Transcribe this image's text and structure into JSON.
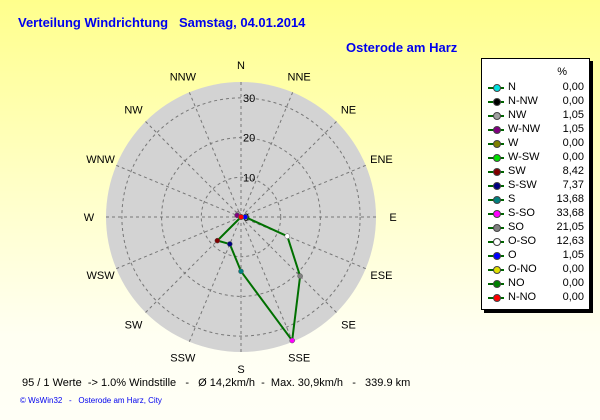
{
  "header": {
    "title": "Verteilung Windrichtung   Samstag, 04.01.2014",
    "location": "Osterode am Harz"
  },
  "chart_data": {
    "type": "radar",
    "title": "Verteilung Windrichtung   Samstag, 04.01.2014",
    "unit_label": "%",
    "radial_ticks": [
      "0",
      "10",
      "20",
      "30"
    ],
    "radial_range": [
      0,
      34
    ],
    "grid": true,
    "legend_placement": "right",
    "direction_labels": [
      "N",
      "NNE",
      "NE",
      "ENE",
      "E",
      "ESE",
      "SE",
      "SSE",
      "S",
      "SSW",
      "SW",
      "WSW",
      "W",
      "WNW",
      "NW",
      "NNW"
    ],
    "line_color": "#007000",
    "disc_color": "#d3d3d3",
    "series": [
      {
        "name": "N",
        "angle_deg": 0,
        "value": 0.0,
        "value_label": "0,00",
        "color": "#00e0e0"
      },
      {
        "name": "N-NW",
        "angle_deg": 337.5,
        "value": 0.0,
        "value_label": "0,00",
        "color": "#000000"
      },
      {
        "name": "NW",
        "angle_deg": 315,
        "value": 1.05,
        "value_label": "1,05",
        "color": "#a0a0a0"
      },
      {
        "name": "W-NW",
        "angle_deg": 292.5,
        "value": 1.05,
        "value_label": "1,05",
        "color": "#800080"
      },
      {
        "name": "W",
        "angle_deg": 270,
        "value": 0.0,
        "value_label": "0,00",
        "color": "#808000"
      },
      {
        "name": "W-SW",
        "angle_deg": 247.5,
        "value": 0.0,
        "value_label": "0,00",
        "color": "#00e000"
      },
      {
        "name": "SW",
        "angle_deg": 225,
        "value": 8.42,
        "value_label": "8,42",
        "color": "#800000"
      },
      {
        "name": "S-SW",
        "angle_deg": 202.5,
        "value": 7.37,
        "value_label": "7,37",
        "color": "#000080"
      },
      {
        "name": "S",
        "angle_deg": 180,
        "value": 13.68,
        "value_label": "13,68",
        "color": "#008080"
      },
      {
        "name": "S-SO",
        "angle_deg": 157.5,
        "value": 33.68,
        "value_label": "33,68",
        "color": "#ff00ff"
      },
      {
        "name": "SO",
        "angle_deg": 135,
        "value": 21.05,
        "value_label": "21,05",
        "color": "#808080"
      },
      {
        "name": "O-SO",
        "angle_deg": 112.5,
        "value": 12.63,
        "value_label": "12,63",
        "color": "#ffffff"
      },
      {
        "name": "O",
        "angle_deg": 90,
        "value": 1.05,
        "value_label": "1,05",
        "color": "#0000ff"
      },
      {
        "name": "O-NO",
        "angle_deg": 67.5,
        "value": 0.0,
        "value_label": "0,00",
        "color": "#e0e000"
      },
      {
        "name": "NO",
        "angle_deg": 45,
        "value": 0.0,
        "value_label": "0,00",
        "color": "#008000"
      },
      {
        "name": "N-NO",
        "angle_deg": 22.5,
        "value": 0.0,
        "value_label": "0,00",
        "color": "#ff0000"
      }
    ]
  },
  "footer": {
    "stats": "95 / 1 Werte  -> 1.0% Windstille   -   Ø 14,2km/h  -  Max. 30,9km/h   -   339.9 km",
    "credit": "© WsWin32   -   Osterode am Harz, City"
  }
}
